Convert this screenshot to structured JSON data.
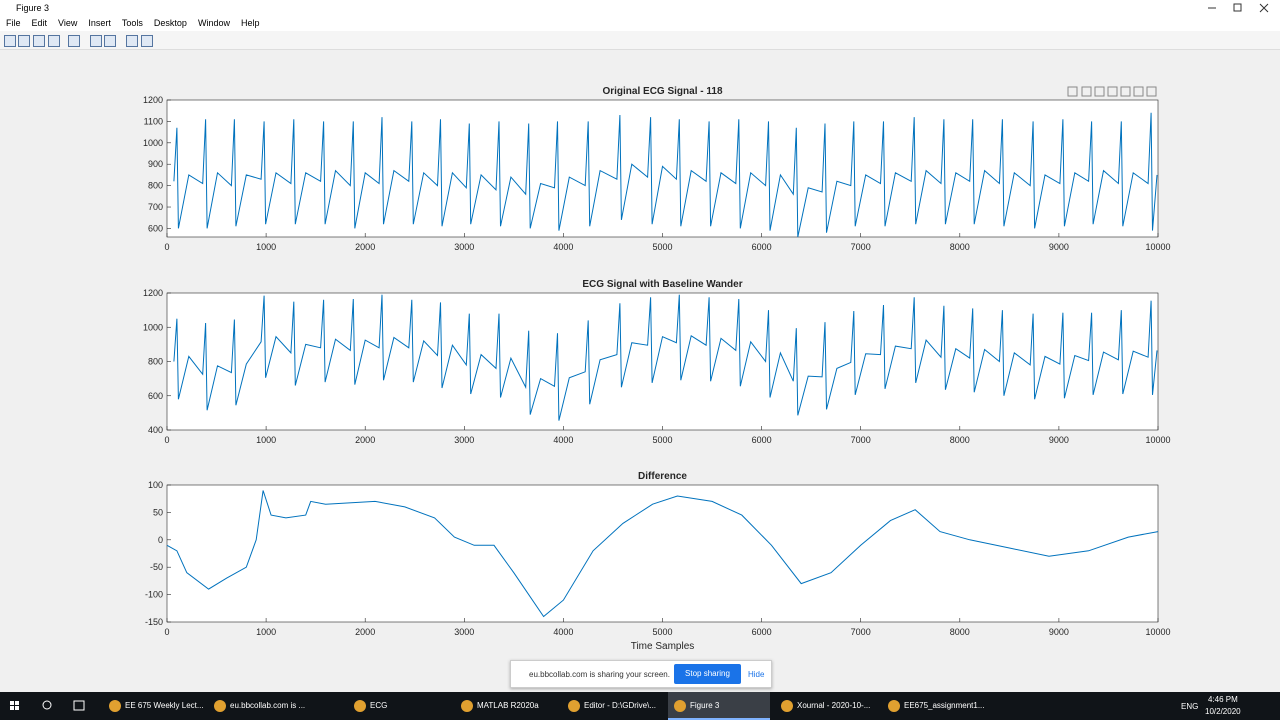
{
  "window": {
    "title": "Figure 3",
    "menu": [
      "File",
      "Edit",
      "View",
      "Insert",
      "Tools",
      "Desktop",
      "Window",
      "Help"
    ]
  },
  "chart_data": [
    {
      "type": "line",
      "title": "Original ECG Signal - 118",
      "color": "#0072bd",
      "x": [
        70,
        100,
        115,
        220,
        360,
        390,
        405,
        510,
        650,
        680,
        695,
        800,
        950,
        980,
        995,
        1100,
        1250,
        1280,
        1295,
        1400,
        1550,
        1580,
        1595,
        1700,
        1850,
        1880,
        1895,
        2000,
        2140,
        2170,
        2185,
        2290,
        2440,
        2470,
        2485,
        2590,
        2730,
        2760,
        2775,
        2880,
        3020,
        3050,
        3065,
        3170,
        3320,
        3350,
        3365,
        3470,
        3620,
        3650,
        3665,
        3770,
        3910,
        3940,
        3955,
        4060,
        4220,
        4250,
        4265,
        4370,
        4540,
        4570,
        4585,
        4690,
        4850,
        4880,
        4895,
        5000,
        5140,
        5170,
        5185,
        5290,
        5440,
        5470,
        5485,
        5590,
        5740,
        5770,
        5785,
        5890,
        6040,
        6070,
        6085,
        6190,
        6320,
        6350,
        6365,
        6470,
        6610,
        6640,
        6655,
        6760,
        6900,
        6930,
        6945,
        7050,
        7200,
        7230,
        7245,
        7350,
        7510,
        7540,
        7555,
        7660,
        7810,
        7840,
        7855,
        7960,
        8100,
        8130,
        8145,
        8250,
        8400,
        8430,
        8445,
        8550,
        8710,
        8740,
        8755,
        8860,
        9010,
        9040,
        9055,
        9160,
        9300,
        9330,
        9345,
        9450,
        9600,
        9630,
        9645,
        9750,
        9900,
        9930,
        9945,
        9990
      ],
      "values": [
        820,
        1070,
        600,
        850,
        810,
        1110,
        600,
        860,
        800,
        1110,
        610,
        850,
        830,
        1100,
        620,
        860,
        810,
        1110,
        620,
        860,
        820,
        1100,
        620,
        870,
        800,
        1100,
        600,
        860,
        810,
        1120,
        620,
        870,
        820,
        1100,
        620,
        860,
        800,
        1110,
        610,
        860,
        790,
        1090,
        620,
        850,
        780,
        1100,
        610,
        840,
        760,
        1090,
        600,
        810,
        790,
        1100,
        590,
        840,
        800,
        1100,
        610,
        870,
        830,
        1130,
        640,
        900,
        840,
        1120,
        620,
        890,
        830,
        1110,
        610,
        870,
        820,
        1100,
        610,
        860,
        810,
        1110,
        600,
        860,
        800,
        1100,
        590,
        850,
        760,
        1070,
        560,
        790,
        770,
        1090,
        580,
        820,
        800,
        1100,
        610,
        850,
        810,
        1100,
        610,
        860,
        820,
        1120,
        620,
        870,
        810,
        1110,
        620,
        860,
        820,
        1110,
        620,
        870,
        810,
        1110,
        610,
        860,
        800,
        1100,
        600,
        850,
        810,
        1110,
        610,
        860,
        820,
        1100,
        620,
        870,
        810,
        1100,
        610,
        860,
        810,
        1140,
        590,
        850
      ],
      "xlim": [
        0,
        10000
      ],
      "xticks": [
        0,
        1000,
        2000,
        3000,
        4000,
        5000,
        6000,
        7000,
        8000,
        9000,
        10000
      ],
      "ylim": [
        560,
        1200
      ],
      "yticks": [
        600,
        700,
        800,
        900,
        1000,
        1100,
        1200
      ]
    },
    {
      "type": "line",
      "title": "ECG Signal with Baseline Wander",
      "color": "#0072bd",
      "x": [
        70,
        100,
        115,
        220,
        360,
        390,
        405,
        510,
        650,
        680,
        695,
        800,
        950,
        980,
        995,
        1100,
        1250,
        1280,
        1295,
        1400,
        1550,
        1580,
        1595,
        1700,
        1850,
        1880,
        1895,
        2000,
        2140,
        2170,
        2185,
        2290,
        2440,
        2470,
        2485,
        2590,
        2730,
        2760,
        2775,
        2880,
        3020,
        3050,
        3065,
        3170,
        3320,
        3350,
        3365,
        3470,
        3620,
        3650,
        3665,
        3770,
        3910,
        3940,
        3955,
        4060,
        4220,
        4250,
        4265,
        4370,
        4540,
        4570,
        4585,
        4690,
        4850,
        4880,
        4895,
        5000,
        5140,
        5170,
        5185,
        5290,
        5440,
        5470,
        5485,
        5590,
        5740,
        5770,
        5785,
        5890,
        6040,
        6070,
        6085,
        6190,
        6320,
        6350,
        6365,
        6470,
        6610,
        6640,
        6655,
        6760,
        6900,
        6930,
        6945,
        7050,
        7200,
        7230,
        7245,
        7350,
        7510,
        7540,
        7555,
        7660,
        7810,
        7840,
        7855,
        7960,
        8100,
        8130,
        8145,
        8250,
        8400,
        8430,
        8445,
        8550,
        8710,
        8740,
        8755,
        8860,
        9010,
        9040,
        9055,
        9160,
        9300,
        9330,
        9345,
        9450,
        9600,
        9630,
        9645,
        9750,
        9900,
        9930,
        9945,
        9990
      ],
      "values": [
        800,
        1050,
        580,
        830,
        725,
        1025,
        515,
        775,
        735,
        1045,
        545,
        785,
        915,
        1185,
        705,
        945,
        850,
        1150,
        660,
        900,
        880,
        1160,
        680,
        930,
        865,
        1165,
        665,
        925,
        880,
        1190,
        690,
        940,
        880,
        1160,
        680,
        920,
        835,
        1145,
        645,
        895,
        780,
        1080,
        610,
        840,
        760,
        1080,
        590,
        820,
        650,
        980,
        490,
        700,
        655,
        965,
        455,
        705,
        740,
        1040,
        550,
        810,
        840,
        1140,
        650,
        910,
        895,
        1175,
        675,
        945,
        910,
        1190,
        690,
        950,
        895,
        1175,
        685,
        935,
        865,
        1165,
        655,
        915,
        800,
        1100,
        590,
        850,
        685,
        995,
        485,
        715,
        710,
        1030,
        520,
        760,
        795,
        1095,
        605,
        845,
        840,
        1130,
        640,
        890,
        875,
        1175,
        675,
        925,
        825,
        1125,
        635,
        875,
        820,
        1110,
        620,
        870,
        800,
        1100,
        600,
        850,
        780,
        1080,
        580,
        830,
        785,
        1085,
        585,
        835,
        805,
        1085,
        605,
        855,
        810,
        1100,
        610,
        860,
        825,
        1155,
        605,
        865
      ],
      "xlim": [
        0,
        10000
      ],
      "xticks": [
        0,
        1000,
        2000,
        3000,
        4000,
        5000,
        6000,
        7000,
        8000,
        9000,
        10000
      ],
      "ylim": [
        400,
        1200
      ],
      "yticks": [
        400,
        600,
        800,
        1000,
        1200
      ]
    },
    {
      "type": "line",
      "title": "Difference",
      "xlabel": "Time Samples",
      "color": "#0072bd",
      "x": [
        0,
        100,
        200,
        420,
        600,
        800,
        900,
        970,
        1050,
        1200,
        1400,
        1450,
        1600,
        2100,
        2400,
        2700,
        2900,
        3100,
        3300,
        3500,
        3800,
        4000,
        4300,
        4600,
        4900,
        5150,
        5500,
        5800,
        6100,
        6400,
        6700,
        7000,
        7300,
        7550,
        7800,
        8100,
        8500,
        8900,
        9300,
        9700,
        10000
      ],
      "values": [
        -10,
        -20,
        -60,
        -90,
        -70,
        -50,
        0,
        90,
        45,
        40,
        45,
        70,
        65,
        70,
        60,
        40,
        5,
        -10,
        -10,
        -60,
        -140,
        -110,
        -20,
        30,
        65,
        80,
        70,
        45,
        -10,
        -80,
        -60,
        -10,
        35,
        55,
        15,
        0,
        -15,
        -30,
        -20,
        5,
        15
      ],
      "xlim": [
        0,
        10000
      ],
      "xticks": [
        0,
        1000,
        2000,
        3000,
        4000,
        5000,
        6000,
        7000,
        8000,
        9000,
        10000
      ],
      "ylim": [
        -150,
        100
      ],
      "yticks": [
        -150,
        -100,
        -50,
        0,
        50,
        100
      ]
    }
  ],
  "share_banner": {
    "message": "eu.bbcollab.com is sharing your screen.",
    "stop": "Stop sharing",
    "hide": "Hide"
  },
  "taskbar": {
    "apps": [
      "EE 675 Weekly Lect...",
      "eu.bbcollab.com is ...",
      "ECG",
      "MATLAB R2020a",
      "Editor - D:\\GDrive\\...",
      "Figure 3",
      "Xournal - 2020-10-...",
      "EE675_assignment1..."
    ],
    "language": "ENG",
    "time": "4:46 PM",
    "date": "10/2/2020"
  }
}
